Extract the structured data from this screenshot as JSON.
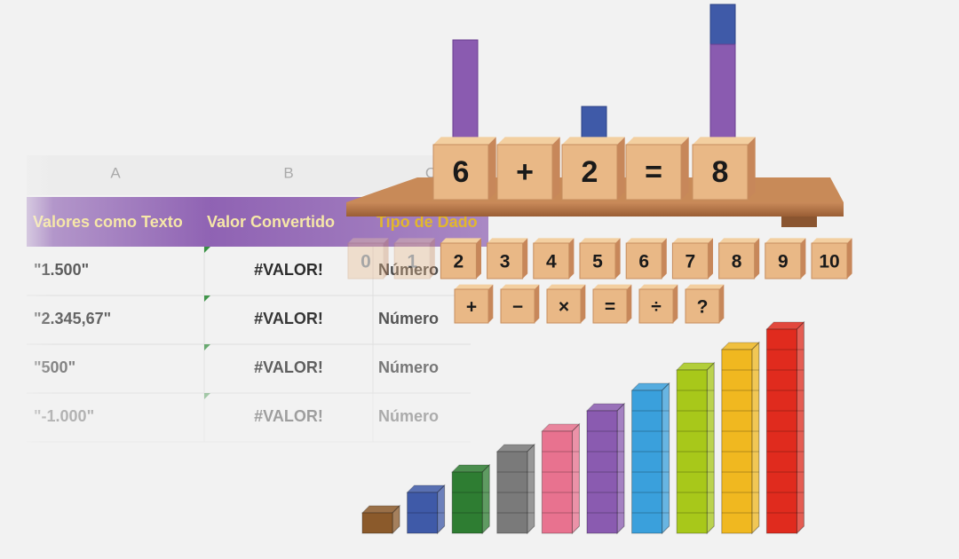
{
  "spreadsheet": {
    "column_headers": [
      "A",
      "B",
      "C"
    ],
    "header": [
      "Valores como Texto",
      "Valor Convertido",
      "Tipo de Dado"
    ],
    "rows": [
      [
        "\"1.500\"",
        "#VALOR!",
        "Número"
      ],
      [
        "\"2.345,67\"",
        "#VALOR!",
        "Número"
      ],
      [
        "\"500\"",
        "#VALOR!",
        "Número"
      ],
      [
        "\"-1.000\"",
        "#VALOR!",
        "Número"
      ]
    ]
  },
  "blocks": {
    "equation": [
      "6",
      "+",
      "2",
      "=",
      "8"
    ],
    "numbers": [
      "0",
      "1",
      "2",
      "3",
      "4",
      "5",
      "6",
      "7",
      "8",
      "9",
      "10"
    ],
    "operators": [
      "+",
      "−",
      "×",
      "=",
      "÷",
      "?"
    ]
  },
  "rods": {
    "counts": [
      1,
      2,
      3,
      4,
      5,
      6,
      7,
      8,
      9,
      10
    ],
    "colors": [
      "#8b5a2b",
      "#3f5aa8",
      "#2e7d32",
      "#7a7a7a",
      "#e8728f",
      "#8a5bb0",
      "#3aa0dc",
      "#a8c81a",
      "#f0b820",
      "#e02b1e"
    ]
  }
}
